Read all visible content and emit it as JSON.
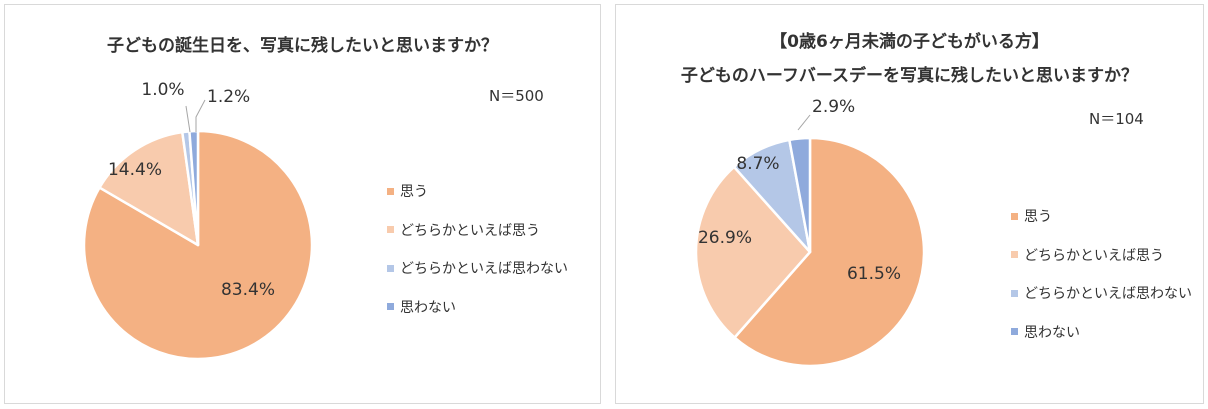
{
  "colors": {
    "omou": "#f4b183",
    "dochiraka_omou": "#f8cbad",
    "dochiraka_omowanai": "#b4c7e7",
    "omowanai": "#8faadc",
    "leader_line": "#a6a6a6",
    "slice_border": "#ffffff"
  },
  "chart_data": [
    {
      "type": "pie",
      "title": "子どもの誕生日を、写真に残したいと思いますか？",
      "subtitle": "",
      "n_label": "N＝500",
      "categories": [
        "思う",
        "どちらかといえば思う",
        "どちらかといえば思わない",
        "思わない"
      ],
      "values": [
        83.4,
        14.4,
        1.0,
        1.2
      ],
      "value_labels": [
        "83.4%",
        "14.4%",
        "1.0%",
        "1.2%"
      ],
      "legend_position": "right",
      "start_angle": "12 o'clock",
      "direction": "clockwise"
    },
    {
      "type": "pie",
      "title": "【0歳6ヶ月未満の子どもがいる方】",
      "subtitle": "子どものハーフバースデーを写真に残したいと思いますか？",
      "n_label": "N＝104",
      "categories": [
        "思う",
        "どちらかといえば思う",
        "どちらかといえば思わない",
        "思わない"
      ],
      "values": [
        61.5,
        26.9,
        8.7,
        2.9
      ],
      "value_labels": [
        "61.5%",
        "26.9%",
        "8.7%",
        "2.9%"
      ],
      "legend_position": "right",
      "start_angle": "12 o'clock",
      "direction": "clockwise"
    }
  ]
}
